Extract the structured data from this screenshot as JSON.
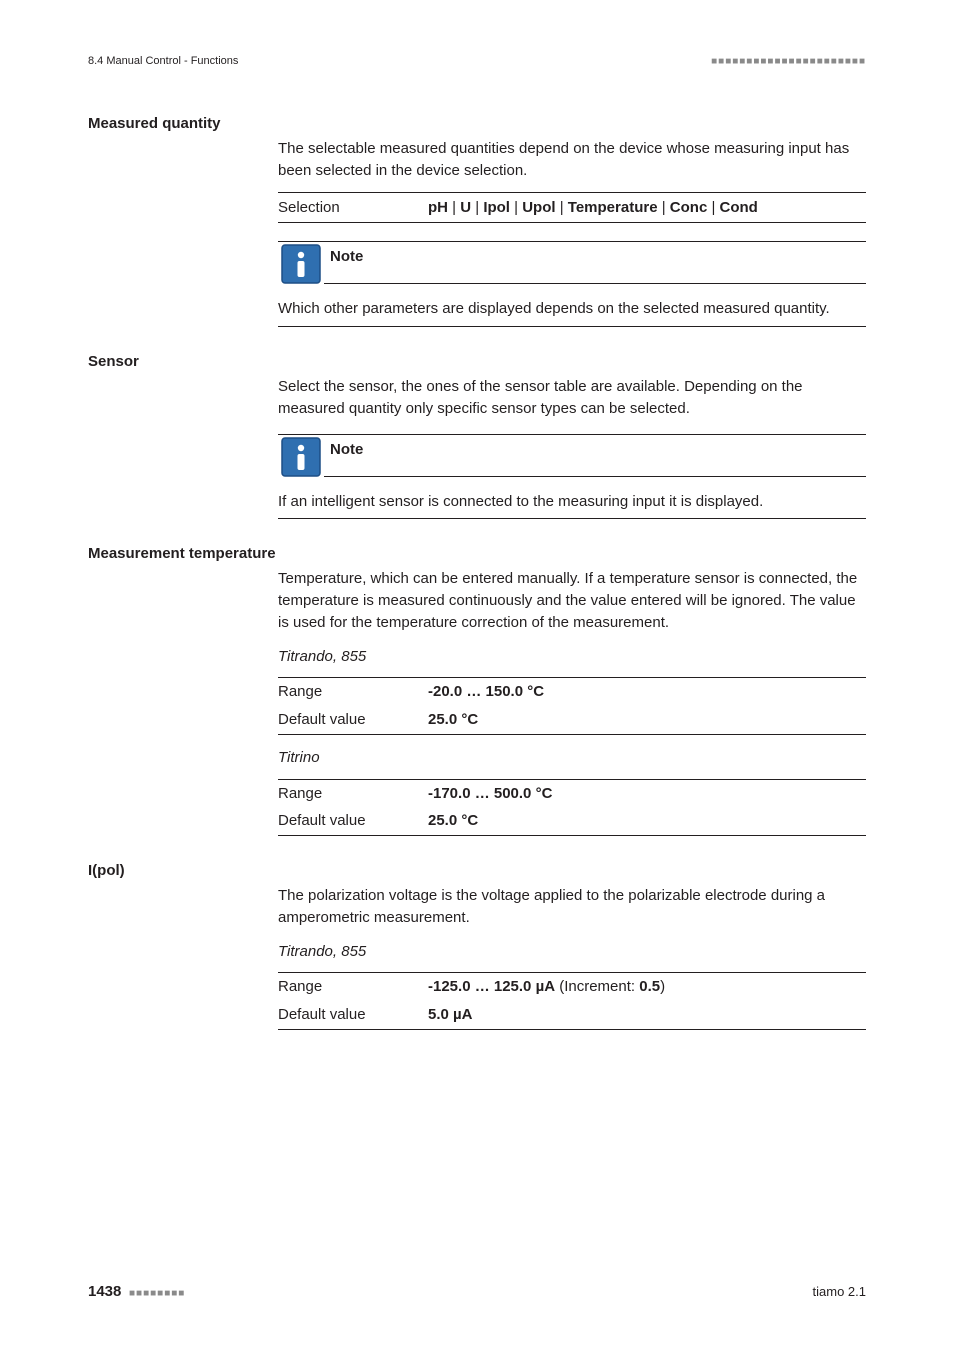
{
  "header": {
    "left": "8.4 Manual Control - Functions",
    "dots": "■■■■■■■■■■■■■■■■■■■■■■"
  },
  "sections": [
    {
      "heading": "Measured quantity",
      "intro": "The selectable measured quantities depend on the device whose measuring input has been selected in the device selection.",
      "selection": {
        "label": "Selection",
        "options": [
          "pH",
          "U",
          "Ipol",
          "Upol",
          "Temperature",
          "Conc",
          "Cond"
        ]
      },
      "note": {
        "title": "Note",
        "body": "Which other parameters are displayed depends on the selected measured quantity."
      }
    },
    {
      "heading": "Sensor",
      "intro": "Select the sensor, the ones of the sensor table are available. Depending on the measured quantity only specific sensor types can be selected.",
      "note": {
        "title": "Note",
        "body": "If an intelligent sensor is connected to the measuring input it is displayed."
      }
    },
    {
      "heading": "Measurement temperature",
      "intro": "Temperature, which can be entered manually. If a temperature sensor is connected, the temperature is measured continuously and the value entered will be ignored. The value is used for the temperature correction of the measurement.",
      "variants": [
        {
          "label": "Titrando, 855",
          "rows": [
            {
              "k": "Range",
              "v": "-20.0 … 150.0 °C"
            },
            {
              "k": "Default value",
              "v": "25.0 °C"
            }
          ]
        },
        {
          "label": "Titrino",
          "rows": [
            {
              "k": "Range",
              "v": "-170.0 … 500.0 °C"
            },
            {
              "k": "Default value",
              "v": "25.0 °C"
            }
          ]
        }
      ]
    },
    {
      "heading": "I(pol)",
      "intro": "The polarization voltage is the voltage applied to the polarizable electrode during a amperometric measurement.",
      "variants": [
        {
          "label": "Titrando, 855",
          "rows": [
            {
              "k": "Range",
              "v": "-125.0 … 125.0 µA",
              "suffix": " (Increment: ",
              "suffix_b": "0.5",
              "suffix_end": ")"
            },
            {
              "k": "Default value",
              "v": "5.0 µA"
            }
          ]
        }
      ]
    }
  ],
  "footer": {
    "page": "1438",
    "dots": "■■■■■■■■",
    "right": "tiamo 2.1"
  },
  "icon": {
    "bg": "#2f6fb0",
    "border": "#1d4e86",
    "fg": "#ffffff"
  }
}
